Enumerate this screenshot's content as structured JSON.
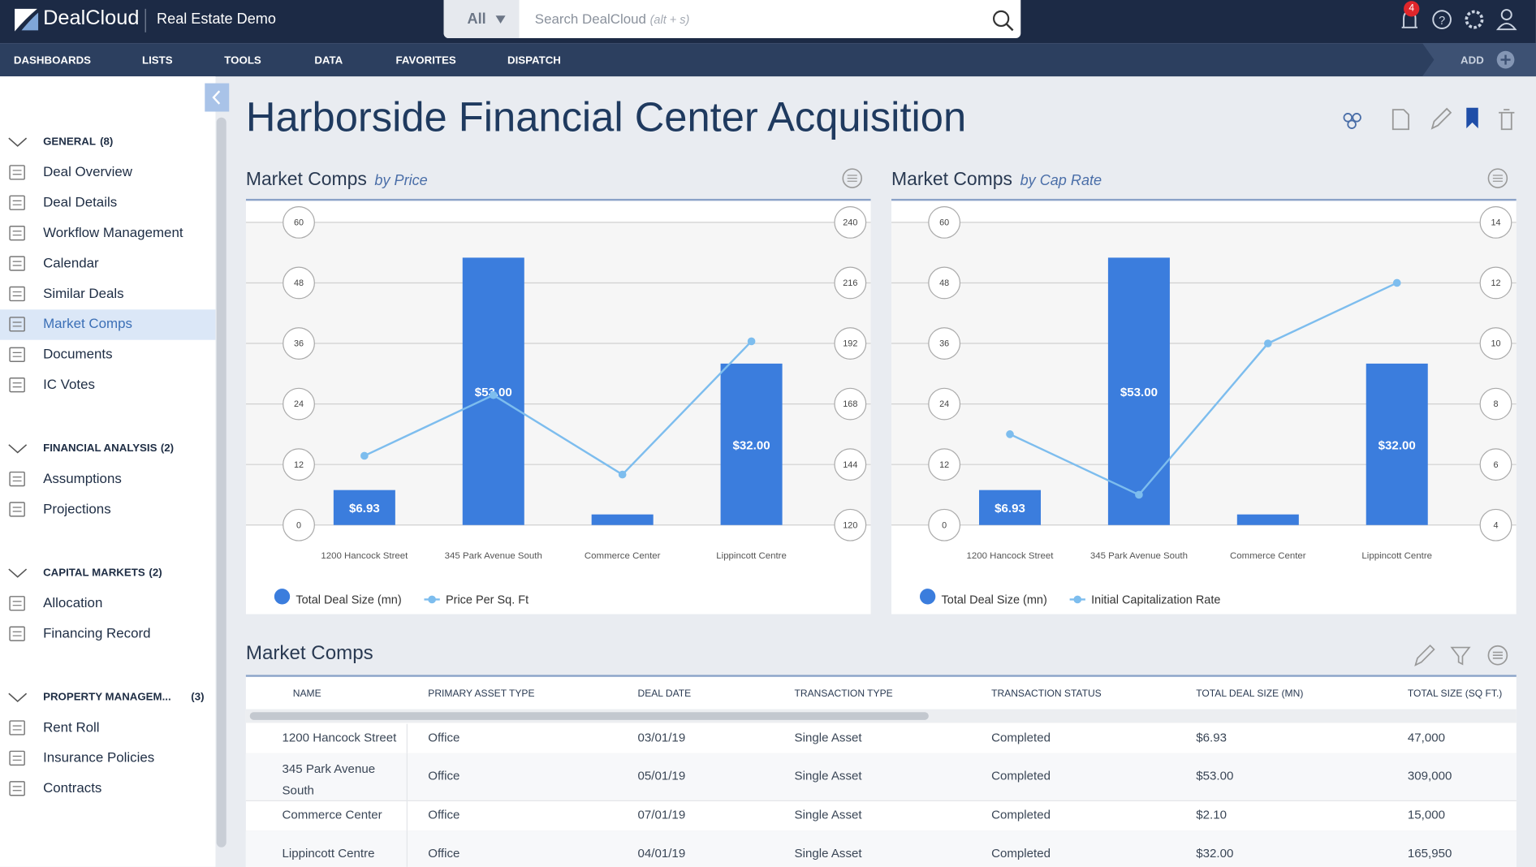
{
  "app": {
    "brand": "DealCloud",
    "workspace": "Real Estate Demo",
    "search_scope": "All",
    "search_placeholder": "Search DealCloud",
    "search_hint": "(alt + s)",
    "notification_count": 4
  },
  "nav": {
    "items": [
      "DASHBOARDS",
      "LISTS",
      "TOOLS",
      "DATA",
      "FAVORITES",
      "DISPATCH"
    ],
    "add": "ADD"
  },
  "sidebar": {
    "active": [
      0,
      5
    ],
    "sections": [
      {
        "title": "GENERAL",
        "count": "(8)",
        "items": [
          "Deal Overview",
          "Deal Details",
          "Workflow Management",
          "Calendar",
          "Similar Deals",
          "Market Comps",
          "Documents",
          "IC Votes"
        ]
      },
      {
        "title": "FINANCIAL ANALYSIS",
        "count": "(2)",
        "items": [
          "Assumptions",
          "Projections"
        ]
      },
      {
        "title": "CAPITAL MARKETS",
        "count": "(2)",
        "items": [
          "Allocation",
          "Financing Record"
        ]
      },
      {
        "title": "PROPERTY MANAGEM...",
        "count": "(3)",
        "items": [
          "Rent Roll",
          "Insurance Policies",
          "Contracts"
        ]
      }
    ]
  },
  "page": {
    "title": "Harborside Financial Center Acquisition"
  },
  "chart_data": [
    {
      "type": "bar",
      "title": "Market Comps",
      "subtitle": "by Price",
      "categories": [
        "1200 Hancock Street",
        "345 Park Avenue South",
        "Commerce Center",
        "Lippincott Centre"
      ],
      "series": [
        {
          "name": "Total Deal Size (mn)",
          "type": "bar",
          "color": "#3b7ddd",
          "values": [
            6.93,
            53,
            2.1,
            32
          ],
          "value_labels": [
            "$6.93",
            "$53.00",
            null,
            "$32.00"
          ]
        },
        {
          "name": "Price Per Sq. Ft",
          "type": "line",
          "axis": "y2",
          "color": "#7dbdee",
          "values": [
            147.45,
            171.52,
            140,
            192.83
          ]
        }
      ],
      "ylim": [
        0,
        60
      ],
      "yticks": [
        0,
        12,
        24,
        36,
        48,
        60
      ],
      "y2lim": [
        120,
        240
      ],
      "y2ticks": [
        120,
        144,
        168,
        192,
        216,
        240
      ],
      "grid": true
    },
    {
      "type": "bar",
      "title": "Market Comps",
      "subtitle": "by Cap Rate",
      "categories": [
        "1200 Hancock Street",
        "345 Park Avenue South",
        "Commerce Center",
        "Lippincott Centre"
      ],
      "series": [
        {
          "name": "Total Deal Size (mn)",
          "type": "bar",
          "color": "#3b7ddd",
          "values": [
            6.93,
            53,
            2.1,
            32
          ],
          "value_labels": [
            "$6.93",
            "$53.00",
            null,
            "$32.00"
          ]
        },
        {
          "name": "Initial Capitalization Rate",
          "type": "line",
          "axis": "y2",
          "color": "#7dbdee",
          "values": [
            7,
            5,
            10,
            12
          ]
        }
      ],
      "ylim": [
        0,
        60
      ],
      "yticks": [
        0,
        12,
        24,
        36,
        48,
        60
      ],
      "y2lim": [
        4,
        14
      ],
      "y2ticks": [
        4,
        6,
        8,
        10,
        12,
        14
      ],
      "grid": true
    }
  ],
  "table": {
    "title": "Market Comps",
    "columns": [
      "NAME",
      "PRIMARY ASSET TYPE",
      "DEAL DATE",
      "TRANSACTION TYPE",
      "TRANSACTION STATUS",
      "TOTAL DEAL SIZE (MN)",
      "TOTAL SIZE (SQ FT.)"
    ],
    "rows": [
      [
        "1200 Hancock Street",
        "Office",
        "03/01/19",
        "Single Asset",
        "Completed",
        "$6.93",
        "47,000"
      ],
      [
        "345 Park Avenue South",
        "Office",
        "05/01/19",
        "Single Asset",
        "Completed",
        "$53.00",
        "309,000"
      ],
      [
        "Commerce Center",
        "Office",
        "07/01/19",
        "Single Asset",
        "Completed",
        "$2.10",
        "15,000"
      ],
      [
        "Lippincott Centre",
        "Office",
        "04/01/19",
        "Single Asset",
        "Completed",
        "$32.00",
        "165,950"
      ]
    ]
  }
}
